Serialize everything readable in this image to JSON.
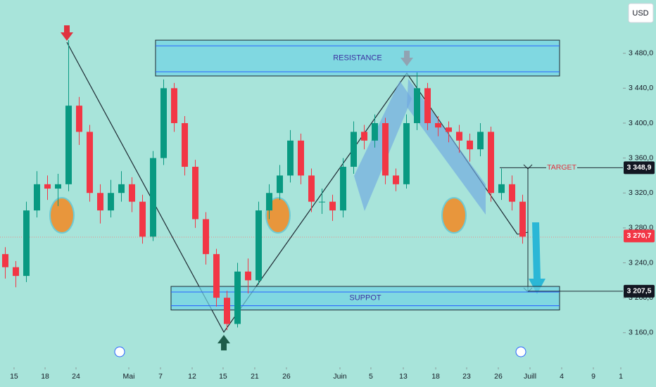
{
  "chart_data": {
    "type": "candlestick",
    "currency": "USD",
    "up_color": "#089981",
    "down_color": "#f23645",
    "open": [
      3250,
      3235,
      3225,
      3300,
      3330,
      3325,
      3330,
      3420,
      3390,
      3320,
      3300,
      3320,
      3330,
      3310,
      3270,
      3360,
      3440,
      3400,
      3350,
      3290,
      3250,
      3200,
      3170,
      3230,
      3220,
      3300,
      3320,
      3340,
      3380,
      3340,
      3310,
      3310,
      3300,
      3350,
      3390,
      3380,
      3400,
      3340,
      3330,
      3400,
      3440,
      3400,
      3395,
      3390,
      3380,
      3370,
      3390,
      3320,
      3330,
      3310
    ],
    "high": [
      3258,
      3242,
      3310,
      3345,
      3340,
      3342,
      3495,
      3430,
      3398,
      3330,
      3335,
      3345,
      3338,
      3318,
      3368,
      3450,
      3446,
      3408,
      3358,
      3298,
      3256,
      3208,
      3240,
      3245,
      3310,
      3330,
      3352,
      3392,
      3388,
      3348,
      3325,
      3318,
      3360,
      3402,
      3398,
      3410,
      3406,
      3348,
      3410,
      3458,
      3446,
      3408,
      3402,
      3398,
      3388,
      3400,
      3396,
      3348,
      3340,
      3318
    ],
    "low": [
      3222,
      3212,
      3218,
      3292,
      3312,
      3305,
      3322,
      3375,
      3310,
      3285,
      3292,
      3310,
      3298,
      3262,
      3265,
      3352,
      3390,
      3340,
      3280,
      3238,
      3190,
      3163,
      3166,
      3205,
      3215,
      3290,
      3312,
      3332,
      3330,
      3298,
      3296,
      3288,
      3292,
      3342,
      3370,
      3372,
      3330,
      3322,
      3325,
      3392,
      3392,
      3385,
      3378,
      3366,
      3356,
      3362,
      3310,
      3312,
      3300,
      3262
    ],
    "close": [
      3235,
      3225,
      3300,
      3330,
      3325,
      3330,
      3420,
      3390,
      3320,
      3300,
      3320,
      3330,
      3310,
      3270,
      3360,
      3440,
      3400,
      3350,
      3290,
      3250,
      3200,
      3170,
      3230,
      3220,
      3300,
      3320,
      3340,
      3380,
      3340,
      3310,
      3310,
      3300,
      3350,
      3390,
      3380,
      3400,
      3340,
      3330,
      3400,
      3440,
      3400,
      3395,
      3390,
      3380,
      3370,
      3390,
      3320,
      3330,
      3310,
      3270
    ],
    "xlim": [
      -0.5,
      58.5
    ],
    "xticks": [
      {
        "value": 0.83,
        "label": "15"
      },
      {
        "value": 3.77,
        "label": "18"
      },
      {
        "value": 6.7,
        "label": "24"
      },
      {
        "value": 11.7,
        "label": "Mai"
      },
      {
        "value": 14.7,
        "label": "7"
      },
      {
        "value": 17.7,
        "label": "12"
      },
      {
        "value": 20.63,
        "label": "15"
      },
      {
        "value": 23.63,
        "label": "21"
      },
      {
        "value": 26.63,
        "label": "26"
      },
      {
        "value": 31.7,
        "label": "Juin"
      },
      {
        "value": 34.63,
        "label": "5"
      },
      {
        "value": 37.7,
        "label": "13"
      },
      {
        "value": 40.77,
        "label": "18"
      },
      {
        "value": 43.7,
        "label": "23"
      },
      {
        "value": 46.7,
        "label": "26"
      },
      {
        "value": 49.7,
        "label": "Juill"
      },
      {
        "value": 52.7,
        "label": "4"
      },
      {
        "value": 55.7,
        "label": "9"
      },
      {
        "value": 58.3,
        "label": "1"
      }
    ],
    "ylim": [
      3126,
      3541
    ],
    "yticks": [
      {
        "value": 3160,
        "label": "3 160,0"
      },
      {
        "value": 3200,
        "label": "3 200,0"
      },
      {
        "value": 3240,
        "label": "3 240,0"
      },
      {
        "value": 3280,
        "label": "3 280,0"
      },
      {
        "value": 3320,
        "label": "3 320,0"
      },
      {
        "value": 3360,
        "label": "3 360,0"
      },
      {
        "value": 3400,
        "label": "3 400,0"
      },
      {
        "value": 3440,
        "label": "3 440,0"
      },
      {
        "value": 3480,
        "label": "3 480,0"
      }
    ],
    "zones": [
      {
        "label": "RESISTANCE",
        "ylim": [
          3454,
          3495
        ],
        "xlim": [
          14.23,
          52.5
        ]
      },
      {
        "label": "SUPPOT",
        "ylim": [
          3186,
          3213
        ],
        "xlim": [
          15.7,
          52.5
        ]
      }
    ],
    "annotations": [
      {
        "text": "TARGET",
        "value": 3348.9
      }
    ],
    "price_levels": [
      {
        "value": 3348.9,
        "label": "3 348,9",
        "color": "#131722"
      },
      {
        "value": 3270.7,
        "label": "3 270,7",
        "color": "#f23645"
      },
      {
        "value": 3207.5,
        "label": "3 207,5",
        "color": "#131722"
      }
    ]
  }
}
